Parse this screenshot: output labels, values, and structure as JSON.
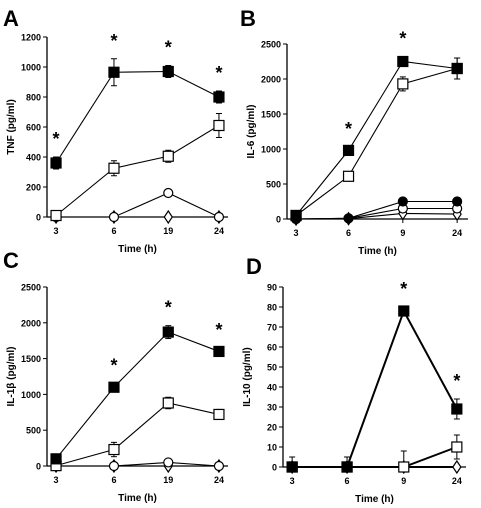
{
  "chart_data": [
    {
      "type": "line",
      "panel_label": "A",
      "categories": [
        "3",
        "6",
        "19",
        "24"
      ],
      "xlabel": "Time (h)",
      "ylabel": "TNF (pg/ml)",
      "ylim": [
        0,
        1200
      ],
      "yticks": [
        "0",
        "200",
        "400",
        "600",
        "800",
        "1000",
        "1200"
      ],
      "series": [
        {
          "marker": "filled-square",
          "values": [
            360,
            965,
            970,
            800
          ],
          "errors": [
            40,
            90,
            40,
            40
          ]
        },
        {
          "marker": "open-square",
          "values": [
            10,
            325,
            405,
            610
          ],
          "errors": [
            15,
            50,
            40,
            80
          ]
        },
        {
          "marker": "open-circle",
          "values": [
            0,
            0,
            160,
            0
          ],
          "errors": [
            0,
            0,
            15,
            0
          ]
        },
        {
          "marker": "open-diamond",
          "values": [
            0,
            0,
            0,
            0
          ],
          "errors": [
            0,
            0,
            0,
            0
          ]
        }
      ],
      "significance": [
        "*",
        "*",
        "*",
        "*"
      ]
    },
    {
      "type": "line",
      "panel_label": "B",
      "categories": [
        "3",
        "6",
        "9",
        "24"
      ],
      "xlabel": "Time (h)",
      "ylabel": "IL-6 (pg/ml)",
      "ylim": [
        0,
        2500
      ],
      "yticks": [
        "0",
        "500",
        "1000",
        "1500",
        "2000",
        "2500"
      ],
      "series": [
        {
          "marker": "filled-square",
          "values": [
            50,
            980,
            2250,
            2150
          ],
          "errors": [
            30,
            50,
            70,
            150
          ]
        },
        {
          "marker": "open-square",
          "values": [
            50,
            610,
            1930,
            2150
          ],
          "errors": [
            30,
            60,
            100,
            150
          ]
        },
        {
          "marker": "filled-circle",
          "values": [
            0,
            10,
            250,
            250
          ],
          "errors": [
            0,
            0,
            30,
            20
          ]
        },
        {
          "marker": "open-circle",
          "values": [
            0,
            10,
            150,
            150
          ],
          "errors": [
            0,
            0,
            40,
            30
          ]
        },
        {
          "marker": "open-diamond",
          "values": [
            0,
            5,
            80,
            70
          ],
          "errors": [
            0,
            0,
            20,
            15
          ]
        }
      ],
      "significance": [
        "",
        "*",
        "*",
        ""
      ]
    },
    {
      "type": "line",
      "panel_label": "C",
      "categories": [
        "3",
        "6",
        "19",
        "24"
      ],
      "xlabel": "Time (h)",
      "ylabel": "IL-1β (pg/ml)",
      "ylim": [
        0,
        2500
      ],
      "yticks": [
        "0",
        "500",
        "1000",
        "1500",
        "2000",
        "2500"
      ],
      "series": [
        {
          "marker": "filled-square",
          "values": [
            100,
            1100,
            1870,
            1600
          ],
          "errors": [
            0,
            50,
            90,
            50
          ]
        },
        {
          "marker": "open-square",
          "values": [
            5,
            230,
            880,
            720
          ],
          "errors": [
            0,
            100,
            80,
            70
          ]
        },
        {
          "marker": "open-circle",
          "values": [
            0,
            0,
            50,
            0
          ],
          "errors": [
            0,
            0,
            40,
            0
          ]
        },
        {
          "marker": "open-diamond",
          "values": [
            0,
            0,
            0,
            0
          ],
          "errors": [
            0,
            0,
            0,
            0
          ]
        }
      ],
      "significance": [
        "",
        "*",
        "*",
        "*"
      ]
    },
    {
      "type": "line",
      "panel_label": "D",
      "categories": [
        "3",
        "6",
        "9",
        "24"
      ],
      "xlabel": "Time (h)",
      "ylabel": "IL-10 (pg/ml)",
      "ylim": [
        0,
        90
      ],
      "yticks": [
        "0",
        "10",
        "20",
        "30",
        "40",
        "50",
        "60",
        "70",
        "80",
        "90"
      ],
      "series": [
        {
          "marker": "filled-square",
          "values": [
            0,
            0,
            78,
            29
          ],
          "errors": [
            0,
            0,
            2,
            5
          ]
        },
        {
          "marker": "open-square",
          "values": [
            0,
            0,
            0,
            10
          ],
          "errors": [
            5,
            5,
            8,
            6
          ]
        },
        {
          "marker": "open-diamond",
          "values": [
            0,
            0,
            0,
            0
          ],
          "errors": [
            0,
            0,
            0,
            0
          ]
        }
      ],
      "significance": [
        "",
        "",
        "*",
        "*"
      ]
    }
  ]
}
